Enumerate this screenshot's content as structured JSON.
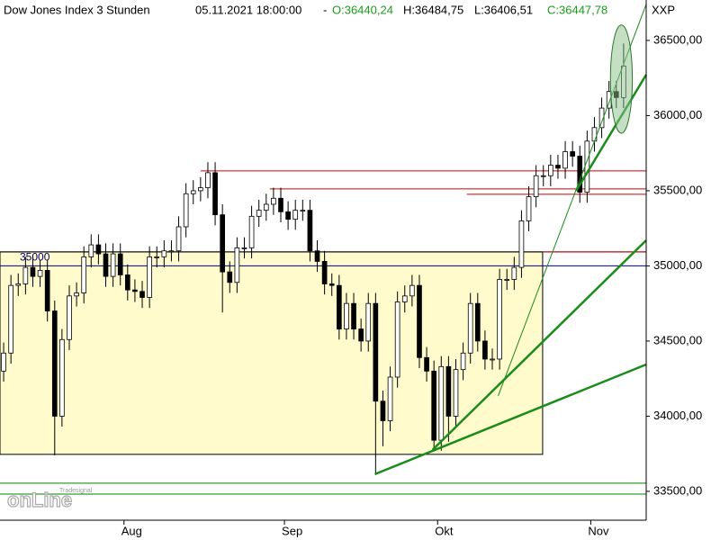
{
  "chart_data": {
    "type": "candlestick",
    "header": {
      "instrument": "Dow Jones Index 3 Stunden",
      "datetime": "05.11.2021 18:00:00",
      "dash": "-",
      "open": "O:36440,24",
      "high": "H:36484,75",
      "low": "L:36406,51",
      "close": "C:36447,78"
    },
    "symbol": "XXP",
    "logo": {
      "small": "Tradesignal",
      "big": "onLine"
    },
    "up_color": "#ffffff",
    "down_color": "#000000",
    "wick_color": "#000000",
    "open": [
      34300,
      34420,
      34870,
      34880,
      34990,
      34930,
      34970,
      34700,
      34000,
      34510,
      34800,
      34820,
      35060,
      35140,
      35080,
      34930,
      35080,
      34940,
      34840,
      34830,
      34790,
      35060,
      35060,
      35100,
      35100,
      35260,
      35480,
      35500,
      35520,
      35620,
      35340,
      34960,
      34890,
      35120,
      35120,
      35330,
      35370,
      35410,
      35450,
      35360,
      35310,
      35370,
      35370,
      35100,
      35030,
      34880,
      34870,
      34580,
      34750,
      34580,
      34500,
      34750,
      34100,
      33970,
      34260,
      34760,
      34800,
      34870,
      34390,
      34300,
      33840,
      34330,
      34000,
      34310,
      34420,
      34750,
      34500,
      34380,
      34380,
      34910,
      34910,
      34990,
      35300,
      35460,
      35600,
      35600,
      35670,
      35650,
      35760,
      35730,
      35490,
      35830,
      35920,
      36050,
      36160,
      36120
    ],
    "high": [
      34490,
      34940,
      34950,
      35060,
      35060,
      35040,
      35040,
      34770,
      34580,
      34870,
      34890,
      35130,
      35210,
      35210,
      35150,
      35150,
      35150,
      35010,
      34910,
      34900,
      35130,
      35130,
      35170,
      35170,
      35330,
      35550,
      35570,
      35590,
      35690,
      35690,
      35410,
      35030,
      35190,
      35190,
      35400,
      35440,
      35480,
      35520,
      35520,
      35430,
      35440,
      35440,
      35440,
      35170,
      35100,
      34950,
      34940,
      34820,
      34820,
      34650,
      34820,
      34820,
      34170,
      34330,
      34830,
      34870,
      34940,
      34940,
      34460,
      34370,
      34400,
      34400,
      34380,
      34490,
      34820,
      34820,
      34570,
      34450,
      34980,
      34980,
      35060,
      35370,
      35530,
      35670,
      35670,
      35740,
      35740,
      35830,
      35830,
      35800,
      35900,
      35990,
      36120,
      36230,
      36230,
      36480
    ],
    "low": [
      34230,
      34350,
      34800,
      34810,
      34860,
      34860,
      34630,
      33740,
      33930,
      34440,
      34730,
      34750,
      34990,
      35010,
      34860,
      34860,
      34870,
      34770,
      34760,
      34720,
      34720,
      34990,
      34990,
      35030,
      35030,
      35190,
      35410,
      35430,
      35450,
      35270,
      34690,
      34820,
      34820,
      35050,
      35050,
      35260,
      35300,
      35340,
      35290,
      35240,
      35240,
      35300,
      35030,
      34960,
      34810,
      34800,
      34510,
      34510,
      34510,
      34430,
      34430,
      33610,
      33800,
      33900,
      34190,
      34690,
      34730,
      34320,
      34230,
      33770,
      33770,
      33830,
      33930,
      34240,
      34350,
      34430,
      34310,
      34310,
      34310,
      34840,
      34840,
      34920,
      35230,
      35390,
      35530,
      35530,
      35580,
      35580,
      35660,
      35420,
      35420,
      35760,
      35850,
      35980,
      36050,
      36050
    ],
    "close": [
      34420,
      34870,
      34880,
      34990,
      34930,
      34970,
      34700,
      34000,
      34510,
      34800,
      34820,
      35060,
      35140,
      35080,
      34930,
      35080,
      34940,
      34840,
      34830,
      34790,
      35060,
      35060,
      35100,
      35100,
      35260,
      35480,
      35500,
      35520,
      35620,
      35340,
      34960,
      34890,
      35120,
      35120,
      35330,
      35370,
      35410,
      35450,
      35360,
      35310,
      35370,
      35370,
      35100,
      35030,
      34880,
      34870,
      34580,
      34750,
      34580,
      34500,
      34750,
      34100,
      33970,
      34260,
      34760,
      34800,
      34870,
      34390,
      34300,
      33840,
      34330,
      34000,
      34310,
      34420,
      34750,
      34500,
      34380,
      34380,
      34910,
      34910,
      34990,
      35300,
      35460,
      35600,
      35600,
      35670,
      35650,
      35760,
      35730,
      35490,
      35830,
      35920,
      36050,
      36160,
      36120,
      36330
    ],
    "xlim": [
      0,
      88.6
    ],
    "xticks": [
      {
        "value": 17,
        "label": "Aug"
      },
      {
        "value": 39,
        "label": "Sep"
      },
      {
        "value": 60,
        "label": "Okt"
      },
      {
        "value": 81,
        "label": "Nov"
      }
    ],
    "ylim": [
      33308,
      36769
    ],
    "yticks": [
      {
        "value": 33500,
        "label": "33500,00"
      },
      {
        "value": 34000,
        "label": "34000,00"
      },
      {
        "value": 34500,
        "label": "34500,00"
      },
      {
        "value": 35000,
        "label": "35000,00"
      },
      {
        "value": 35500,
        "label": "35500,00"
      },
      {
        "value": 36000,
        "label": "36000,00"
      },
      {
        "value": 36500,
        "label": "36500,00"
      }
    ],
    "box": {
      "x": [
        0,
        74.4
      ],
      "y": [
        33746,
        35093
      ],
      "color": "#fffbcc"
    },
    "hlines": [
      {
        "value": 35632,
        "from": 27.5,
        "color": "#cc0000"
      },
      {
        "value": 35512,
        "from": 37,
        "color": "#cc0000"
      },
      {
        "value": 35476,
        "from": 64,
        "color": "#cc0000"
      },
      {
        "value": 35093,
        "from": 0,
        "color": "#000000"
      },
      {
        "value": 35093,
        "from": 74.4,
        "color": "#cc0000"
      },
      {
        "value": 35000,
        "from": 0,
        "color": "#000080",
        "label": "35000"
      },
      {
        "value": 33554,
        "from": 0,
        "color": "#008000"
      },
      {
        "value": 33482,
        "from": 0,
        "color": "#008000"
      }
    ],
    "trendlines": [
      {
        "x": [
          51.4,
          88.6
        ],
        "y": [
          33614,
          34344
        ],
        "width": 2.5
      },
      {
        "x": [
          59.3,
          88.6
        ],
        "y": [
          33776,
          35170
        ],
        "width": 2.5
      },
      {
        "x": [
          68.3,
          88.6
        ],
        "y": [
          34135,
          36740
        ],
        "width": 1
      },
      {
        "x": [
          79,
          88.6
        ],
        "y": [
          35500,
          36272
        ],
        "width": 2.5
      }
    ],
    "trend_color": "#1a8c1a",
    "ellipse": {
      "x": 85.2,
      "y": 36243,
      "rx": 1.5,
      "ry": 360,
      "color": "#8cc08c"
    }
  }
}
